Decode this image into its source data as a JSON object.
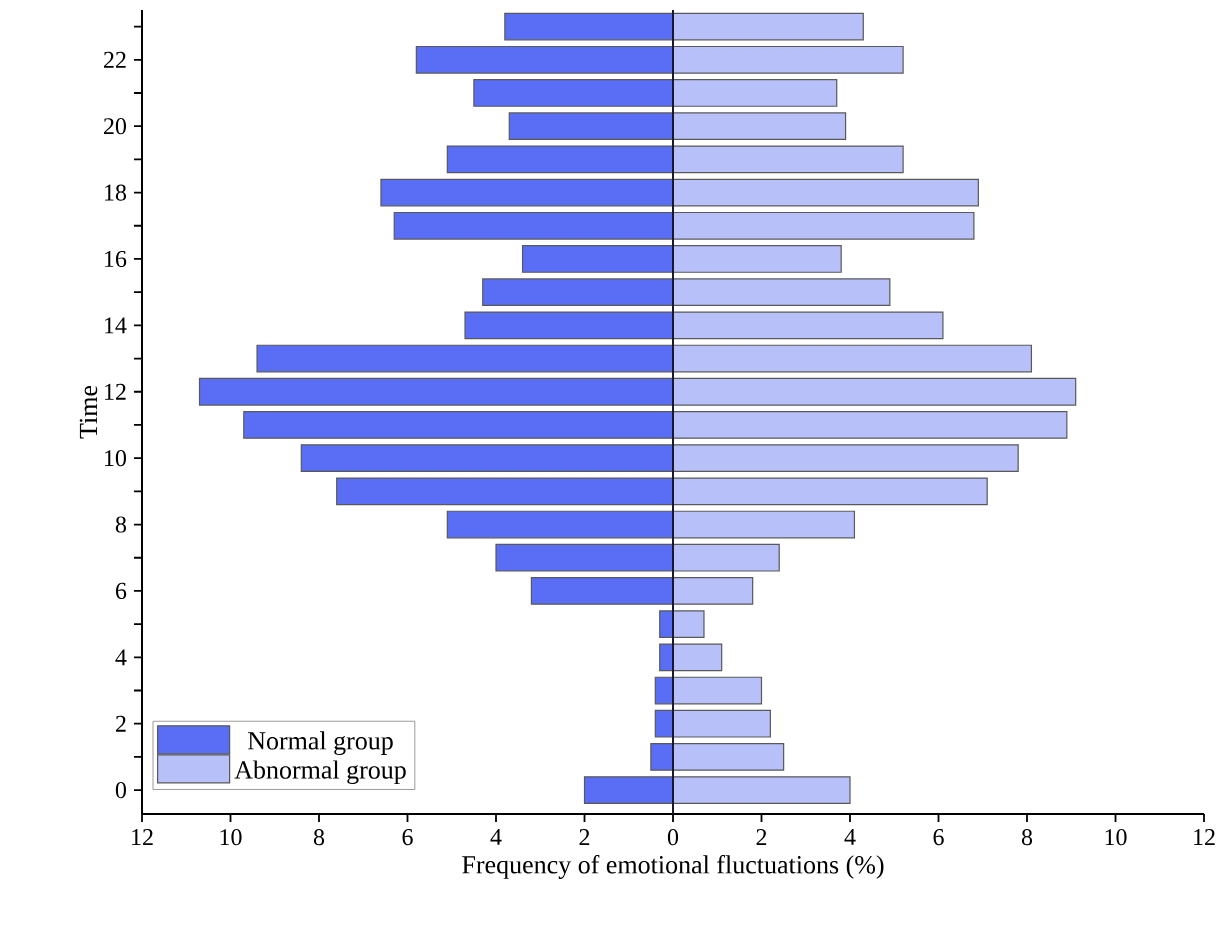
{
  "chart_data": {
    "type": "bar",
    "orientation": "horizontal",
    "stacked": true,
    "xlabel": "Frequency of emotional fluctuations (%)",
    "ylabel": "Time",
    "categories": [
      null,
      "22",
      null,
      "20",
      null,
      "18",
      null,
      "16",
      null,
      "14",
      null,
      "12",
      null,
      "10",
      null,
      "8",
      null,
      "6",
      null,
      "4",
      null,
      "2",
      null,
      "0"
    ],
    "series": [
      {
        "name": "Normal group",
        "color": "#5a6ef5",
        "values": [
          -3.8,
          -5.8,
          -4.5,
          -3.7,
          -5.1,
          -6.6,
          -6.3,
          -3.4,
          -4.3,
          -4.7,
          -9.4,
          -10.7,
          -9.7,
          -8.4,
          -7.6,
          -5.1,
          -4.0,
          -3.2,
          -0.3,
          -0.3,
          -0.4,
          -0.4,
          -0.5,
          -2.0
        ]
      },
      {
        "name": "Abnormal group",
        "color": "#b8c0fa",
        "values": [
          4.3,
          5.2,
          3.7,
          3.9,
          5.2,
          6.9,
          6.8,
          3.8,
          4.9,
          6.1,
          8.1,
          9.1,
          8.9,
          7.8,
          7.1,
          4.1,
          2.4,
          1.8,
          0.7,
          1.1,
          2.0,
          2.2,
          2.5,
          4.0
        ]
      }
    ],
    "xlim": [
      -12,
      12
    ],
    "xticks": [
      {
        "value": -12,
        "label": "12"
      },
      {
        "value": -10,
        "label": "10"
      },
      {
        "value": -8,
        "label": "8"
      },
      {
        "value": -6,
        "label": "6"
      },
      {
        "value": -4,
        "label": "4"
      },
      {
        "value": -2,
        "label": "2"
      },
      0,
      2,
      4,
      6,
      8,
      10,
      12
    ],
    "ref_lines": [
      {
        "axis": "x",
        "value": 0,
        "color": "#1a1a2e"
      }
    ],
    "legend": "bottom left",
    "grid": false
  }
}
